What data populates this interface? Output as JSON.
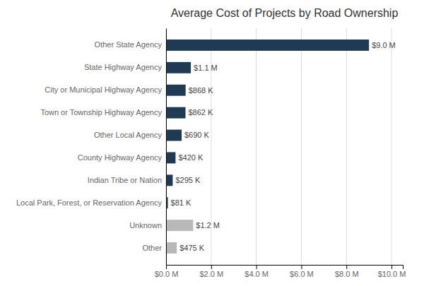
{
  "chart_data": {
    "type": "bar",
    "title": "Average Cost of Projects by Road Ownership",
    "orientation": "horizontal",
    "categories": [
      "Other State Agency",
      "State Highway Agency",
      "City or Municipal Highway Agency",
      "Town or Township Highway Agency",
      "Other Local Agency",
      "County Highway Agency",
      "Indian Tribe or Nation",
      "Local Park, Forest, or Reservation Agency",
      "Unknown",
      "Other"
    ],
    "values": [
      9.0,
      1.1,
      0.868,
      0.862,
      0.69,
      0.42,
      0.295,
      0.081,
      1.2,
      0.475
    ],
    "value_labels": [
      "$9.0 M",
      "$1.1 M",
      "$868 K",
      "$862 K",
      "$690 K",
      "$420 K",
      "$295 K",
      "$81 K",
      "$1.2 M",
      "$475 K"
    ],
    "data_labels": true,
    "colors": [
      "#1F3A52",
      "#1F3A52",
      "#1F3A52",
      "#1F3A52",
      "#1F3A52",
      "#1F3A52",
      "#1F3A52",
      "#1F3A52",
      "#B8B8B8",
      "#B8B8B8"
    ],
    "xlim": [
      0,
      10.5
    ],
    "xticks": [
      {
        "value": 0,
        "label": "$0.0 M"
      },
      {
        "value": 2,
        "label": "$2.0 M"
      },
      {
        "value": 4,
        "label": "$4.0 M"
      },
      {
        "value": 6,
        "label": "$6.0 M"
      },
      {
        "value": 8,
        "label": "$8.0 M"
      },
      {
        "value": 10,
        "label": "$10.0 M"
      }
    ],
    "grid": true
  }
}
